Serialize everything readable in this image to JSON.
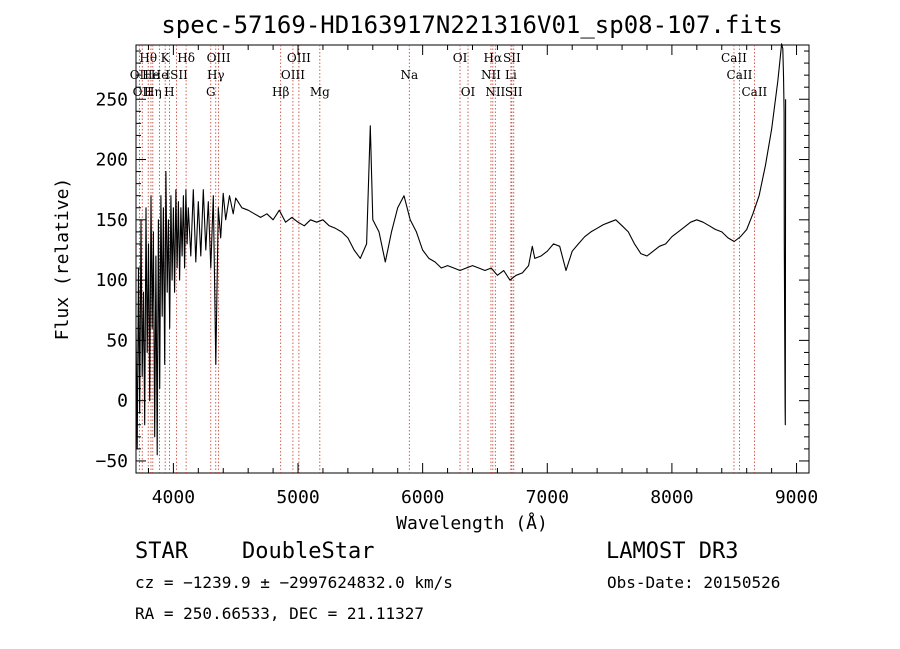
{
  "chart_data": {
    "type": "line",
    "title": "spec-57169-HD163917N221316V01_sp08-107.fits",
    "xlabel": "Wavelength (Å)",
    "ylabel": "Flux (relative)",
    "xlim": [
      3700,
      9100
    ],
    "ylim": [
      -60,
      295
    ],
    "x_ticks": [
      {
        "value": 4000,
        "label": "4000"
      },
      {
        "value": 5000,
        "label": "5000"
      },
      {
        "value": 6000,
        "label": "6000"
      },
      {
        "value": 7000,
        "label": "7000"
      },
      {
        "value": 8000,
        "label": "8000"
      },
      {
        "value": 9000,
        "label": "9000"
      }
    ],
    "y_ticks": [
      {
        "value": -50,
        "label": "−50"
      },
      {
        "value": 0,
        "label": "0"
      },
      {
        "value": 50,
        "label": "50"
      },
      {
        "value": 100,
        "label": "100"
      },
      {
        "value": 150,
        "label": "150"
      },
      {
        "value": 200,
        "label": "200"
      },
      {
        "value": 250,
        "label": "250"
      }
    ],
    "series": [
      {
        "name": "flux",
        "points": [
          [
            3700,
            60
          ],
          [
            3710,
            -40
          ],
          [
            3720,
            110
          ],
          [
            3730,
            -10
          ],
          [
            3740,
            150
          ],
          [
            3750,
            20
          ],
          [
            3760,
            90
          ],
          [
            3770,
            -20
          ],
          [
            3780,
            160
          ],
          [
            3790,
            40
          ],
          [
            3800,
            130
          ],
          [
            3810,
            0
          ],
          [
            3820,
            170
          ],
          [
            3830,
            60
          ],
          [
            3840,
            140
          ],
          [
            3850,
            -30
          ],
          [
            3860,
            120
          ],
          [
            3870,
            -45
          ],
          [
            3880,
            150
          ],
          [
            3890,
            10
          ],
          [
            3900,
            170
          ],
          [
            3910,
            70
          ],
          [
            3920,
            160
          ],
          [
            3930,
            30
          ],
          [
            3940,
            190
          ],
          [
            3950,
            90
          ],
          [
            3960,
            150
          ],
          [
            3970,
            60
          ],
          [
            3980,
            170
          ],
          [
            3990,
            100
          ],
          [
            4000,
            160
          ],
          [
            4010,
            90
          ],
          [
            4020,
            175
          ],
          [
            4030,
            110
          ],
          [
            4040,
            165
          ],
          [
            4050,
            100
          ],
          [
            4060,
            160
          ],
          [
            4070,
            120
          ],
          [
            4080,
            170
          ],
          [
            4090,
            110
          ],
          [
            4100,
            175
          ],
          [
            4110,
            130
          ],
          [
            4120,
            160
          ],
          [
            4140,
            120
          ],
          [
            4160,
            175
          ],
          [
            4180,
            115
          ],
          [
            4200,
            165
          ],
          [
            4220,
            120
          ],
          [
            4240,
            175
          ],
          [
            4260,
            125
          ],
          [
            4280,
            165
          ],
          [
            4300,
            110
          ],
          [
            4320,
            170
          ],
          [
            4340,
            30
          ],
          [
            4360,
            160
          ],
          [
            4380,
            135
          ],
          [
            4400,
            172
          ],
          [
            4420,
            150
          ],
          [
            4450,
            170
          ],
          [
            4480,
            155
          ],
          [
            4500,
            168
          ],
          [
            4550,
            160
          ],
          [
            4600,
            158
          ],
          [
            4650,
            155
          ],
          [
            4700,
            152
          ],
          [
            4750,
            155
          ],
          [
            4800,
            150
          ],
          [
            4850,
            158
          ],
          [
            4900,
            148
          ],
          [
            4950,
            152
          ],
          [
            5000,
            148
          ],
          [
            5050,
            145
          ],
          [
            5100,
            150
          ],
          [
            5150,
            148
          ],
          [
            5200,
            150
          ],
          [
            5250,
            145
          ],
          [
            5300,
            143
          ],
          [
            5350,
            140
          ],
          [
            5400,
            135
          ],
          [
            5450,
            125
          ],
          [
            5500,
            118
          ],
          [
            5550,
            130
          ],
          [
            5580,
            228
          ],
          [
            5600,
            150
          ],
          [
            5650,
            140
          ],
          [
            5700,
            115
          ],
          [
            5750,
            140
          ],
          [
            5800,
            160
          ],
          [
            5850,
            170
          ],
          [
            5900,
            150
          ],
          [
            5950,
            140
          ],
          [
            6000,
            125
          ],
          [
            6050,
            118
          ],
          [
            6100,
            115
          ],
          [
            6150,
            110
          ],
          [
            6200,
            112
          ],
          [
            6250,
            110
          ],
          [
            6300,
            108
          ],
          [
            6350,
            110
          ],
          [
            6400,
            112
          ],
          [
            6450,
            110
          ],
          [
            6500,
            108
          ],
          [
            6550,
            110
          ],
          [
            6600,
            104
          ],
          [
            6650,
            108
          ],
          [
            6700,
            100
          ],
          [
            6750,
            104
          ],
          [
            6800,
            106
          ],
          [
            6850,
            112
          ],
          [
            6880,
            128
          ],
          [
            6900,
            118
          ],
          [
            6950,
            120
          ],
          [
            7000,
            124
          ],
          [
            7050,
            130
          ],
          [
            7100,
            128
          ],
          [
            7150,
            108
          ],
          [
            7200,
            124
          ],
          [
            7250,
            130
          ],
          [
            7300,
            136
          ],
          [
            7350,
            140
          ],
          [
            7400,
            143
          ],
          [
            7450,
            146
          ],
          [
            7500,
            148
          ],
          [
            7550,
            150
          ],
          [
            7600,
            145
          ],
          [
            7650,
            140
          ],
          [
            7700,
            130
          ],
          [
            7750,
            122
          ],
          [
            7800,
            120
          ],
          [
            7850,
            124
          ],
          [
            7900,
            128
          ],
          [
            7950,
            130
          ],
          [
            8000,
            136
          ],
          [
            8050,
            140
          ],
          [
            8100,
            144
          ],
          [
            8150,
            148
          ],
          [
            8200,
            150
          ],
          [
            8250,
            148
          ],
          [
            8300,
            145
          ],
          [
            8350,
            142
          ],
          [
            8400,
            140
          ],
          [
            8450,
            135
          ],
          [
            8500,
            132
          ],
          [
            8550,
            136
          ],
          [
            8600,
            142
          ],
          [
            8650,
            155
          ],
          [
            8700,
            170
          ],
          [
            8750,
            195
          ],
          [
            8800,
            225
          ],
          [
            8850,
            265
          ],
          [
            8870,
            285
          ],
          [
            8880,
            296
          ],
          [
            8890,
            292
          ],
          [
            8895,
            270
          ],
          [
            8900,
            240
          ],
          [
            8902,
            130
          ],
          [
            8905,
            60
          ],
          [
            8908,
            -5
          ],
          [
            8910,
            -20
          ],
          [
            8912,
            250
          ]
        ]
      }
    ],
    "line_markers": [
      {
        "wavelength": 3727,
        "label": "OII",
        "row": 2
      },
      {
        "wavelength": 3750,
        "label": "OII",
        "row": 3
      },
      {
        "wavelength": 3798,
        "label": "Hθ",
        "row": 1
      },
      {
        "wavelength": 3820,
        "label": "He",
        "row": 2
      },
      {
        "wavelength": 3835,
        "label": "Hη",
        "row": 3
      },
      {
        "wavelength": 3889,
        "label": "He",
        "row": 2
      },
      {
        "wavelength": 3934,
        "label": "K",
        "row": 1
      },
      {
        "wavelength": 3968,
        "label": "H",
        "row": 3
      },
      {
        "wavelength": 4026,
        "label": "ISII",
        "row": 2
      },
      {
        "wavelength": 4102,
        "label": "Hδ",
        "row": 1
      },
      {
        "wavelength": 4300,
        "label": "G",
        "row": 3
      },
      {
        "wavelength": 4340,
        "label": "Hγ",
        "row": 2
      },
      {
        "wavelength": 4363,
        "label": "OIII",
        "row": 1
      },
      {
        "wavelength": 4861,
        "label": "Hβ",
        "row": 3
      },
      {
        "wavelength": 4959,
        "label": "OIII",
        "row": 2
      },
      {
        "wavelength": 5007,
        "label": "OIII",
        "row": 1
      },
      {
        "wavelength": 5175,
        "label": "Mg",
        "row": 3
      },
      {
        "wavelength": 5893,
        "label": "Na",
        "row": 2
      },
      {
        "wavelength": 6300,
        "label": "OI",
        "row": 1
      },
      {
        "wavelength": 6364,
        "label": "OI",
        "row": 3
      },
      {
        "wavelength": 6548,
        "label": "NII",
        "row": 2
      },
      {
        "wavelength": 6563,
        "label": "Hα",
        "row": 1
      },
      {
        "wavelength": 6583,
        "label": "NII",
        "row": 3
      },
      {
        "wavelength": 6708,
        "label": "Li",
        "row": 2
      },
      {
        "wavelength": 6716,
        "label": "SII",
        "row": 1
      },
      {
        "wavelength": 6731,
        "label": "SII",
        "row": 3
      },
      {
        "wavelength": 8498,
        "label": "CaII",
        "row": 1
      },
      {
        "wavelength": 8542,
        "label": "CaII",
        "row": 2
      },
      {
        "wavelength": 8662,
        "label": "CaII",
        "row": 3
      }
    ]
  },
  "info": {
    "class": "STAR",
    "subclass": "DoubleStar",
    "survey": "LAMOST DR3",
    "cz": "cz = −1239.9 ± −2997624832.0 km/s",
    "obs_date": "Obs-Date: 20150526",
    "coords": "RA = 250.66533, DEC =  21.11327"
  },
  "colors": {
    "line": "#000000",
    "marker": "#c0392b",
    "axis": "#000000",
    "background": "#ffffff"
  }
}
